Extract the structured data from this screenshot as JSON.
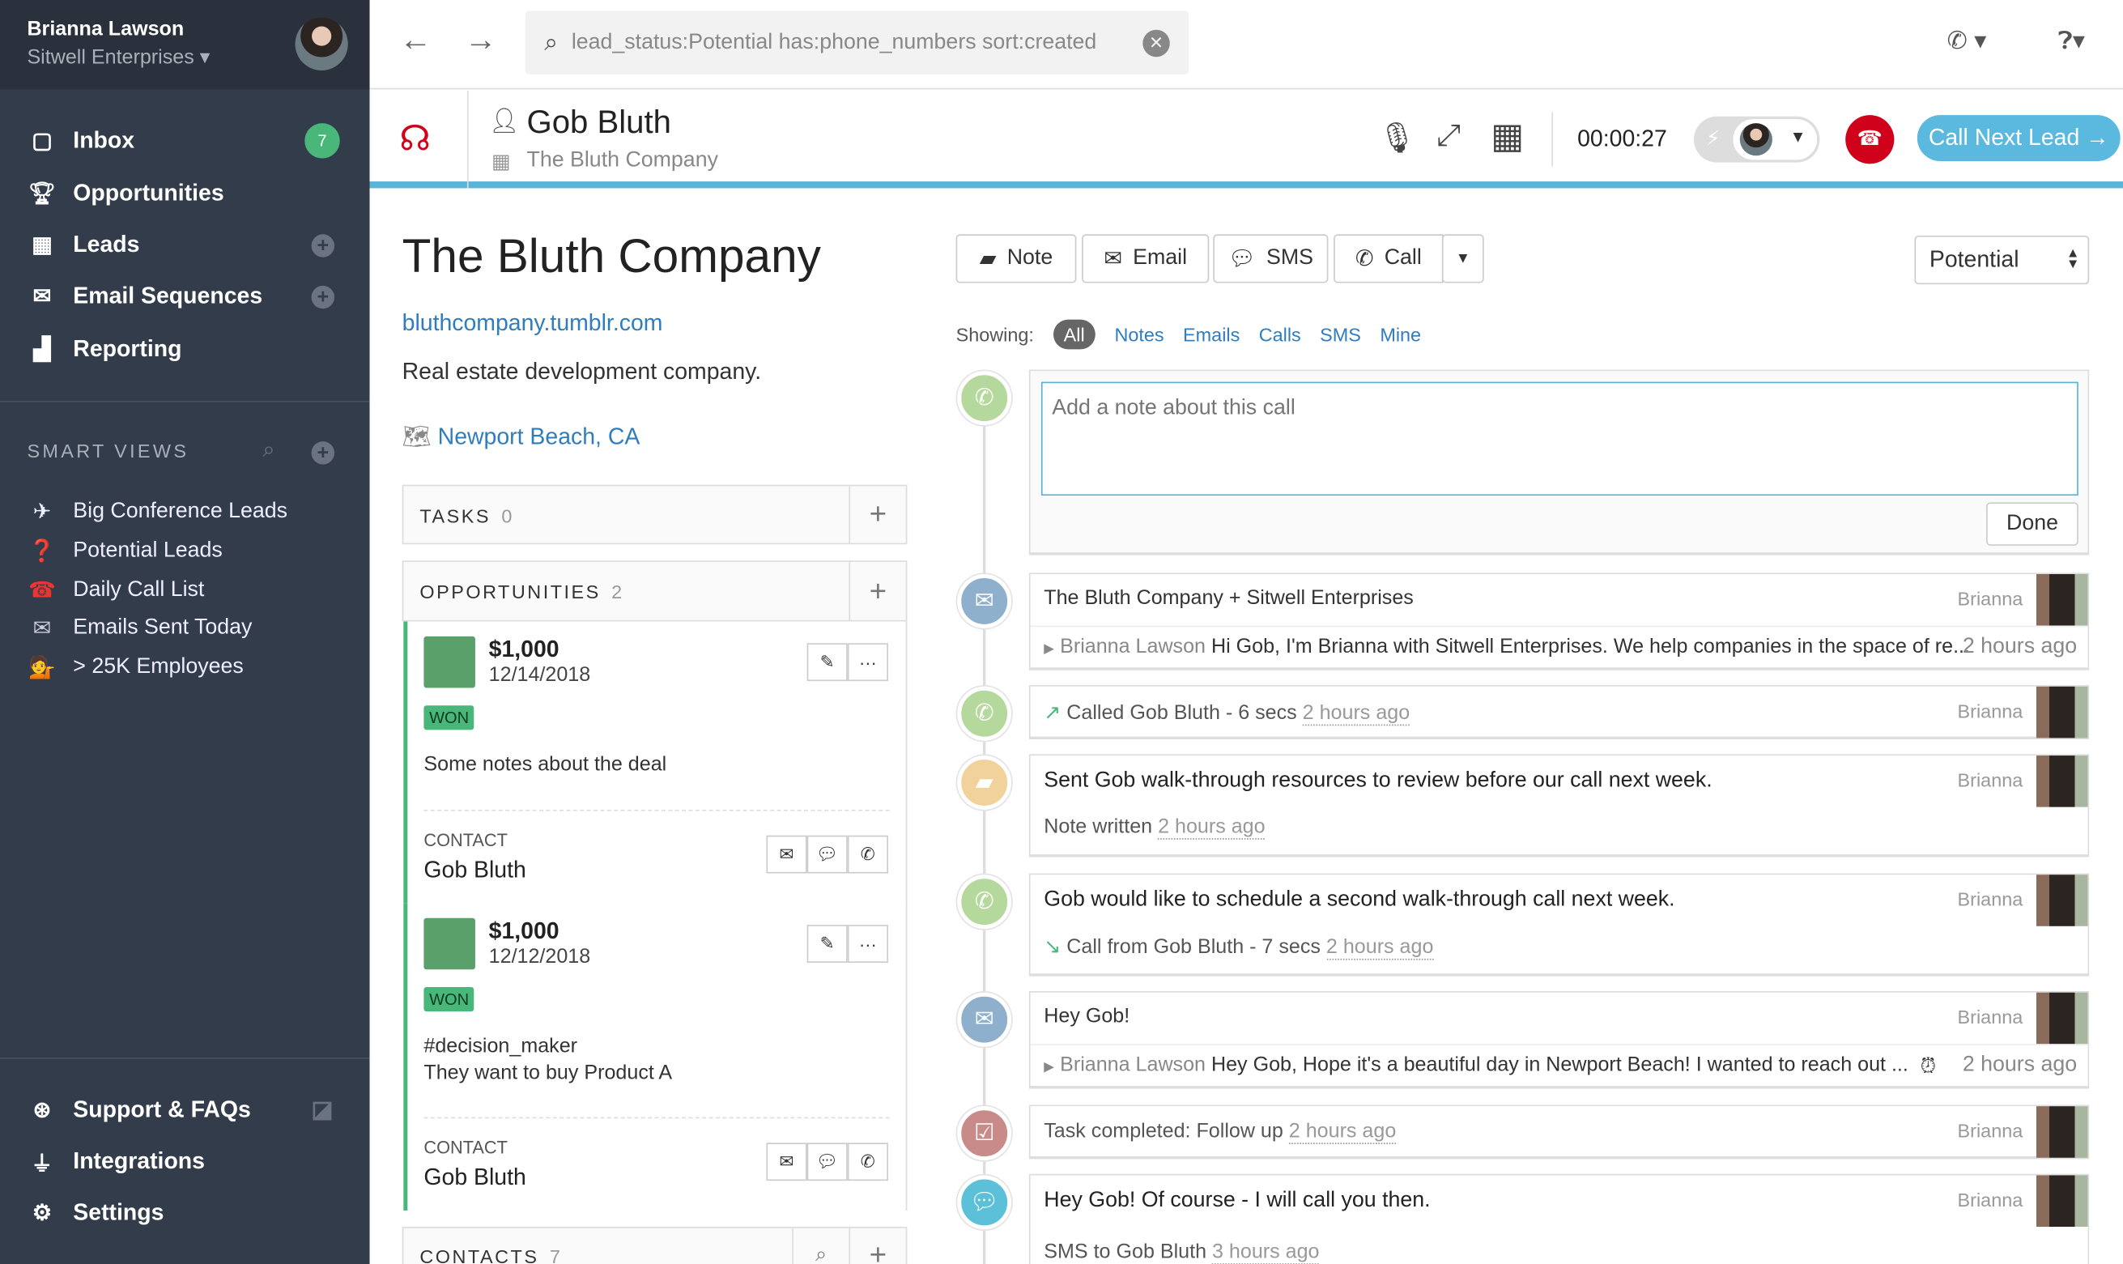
{
  "user": {
    "name": "Brianna Lawson",
    "org": "Sitwell Enterprises"
  },
  "nav": [
    {
      "label": "Inbox",
      "icon": "inbox-icon",
      "badge": "7"
    },
    {
      "label": "Opportunities",
      "icon": "trophy-icon"
    },
    {
      "label": "Leads",
      "icon": "building-icon"
    },
    {
      "label": "Email Sequences",
      "icon": "email-sequences-icon"
    },
    {
      "label": "Reporting",
      "icon": "chart-icon"
    }
  ],
  "smart_views": {
    "title": "SMART VIEWS",
    "items": [
      {
        "label": "Big Conference Leads",
        "icon": "✈"
      },
      {
        "label": "Potential Leads",
        "icon": "❓"
      },
      {
        "label": "Daily Call List",
        "icon": "☎"
      },
      {
        "label": "Emails Sent Today",
        "icon": "✉"
      },
      {
        "label": "> 25K Employees",
        "icon": "💁"
      }
    ]
  },
  "bottom_nav": [
    {
      "label": "Support & FAQs",
      "icon": "lifebuoy-icon"
    },
    {
      "label": "Integrations",
      "icon": "plug-icon"
    },
    {
      "label": "Settings",
      "icon": "gear-icon"
    }
  ],
  "search": {
    "value": "lead_status:Potential has:phone_numbers sort:created"
  },
  "call": {
    "contact": "Gob Bluth",
    "company": "The Bluth Company",
    "timer": "00:00:27",
    "next_label": "Call Next Lead →"
  },
  "lead": {
    "name": "The Bluth Company",
    "url": "bluthcompany.tumblr.com",
    "description": "Real estate development company.",
    "location": "Newport Beach, CA"
  },
  "tasks": {
    "title": "TASKS",
    "count": "0"
  },
  "opportunities": {
    "title": "OPPORTUNITIES",
    "count": "2",
    "items": [
      {
        "value": "$1,000",
        "date": "12/14/2018",
        "status": "WON",
        "notes": [
          "Some notes about the deal"
        ],
        "contact_label": "CONTACT",
        "contact": "Gob Bluth"
      },
      {
        "value": "$1,000",
        "date": "12/12/2018",
        "status": "WON",
        "notes": [
          "#decision_maker",
          "They want to buy Product A"
        ],
        "contact_label": "CONTACT",
        "contact": "Gob Bluth"
      }
    ]
  },
  "contacts": {
    "title": "CONTACTS",
    "count": "7"
  },
  "actions": {
    "note": "Note",
    "email": "Email",
    "sms": "SMS",
    "call": "Call",
    "status": "Potential"
  },
  "filters": {
    "label": "Showing:",
    "items": [
      "All",
      "Notes",
      "Emails",
      "Calls",
      "SMS",
      "Mine"
    ],
    "active": "All"
  },
  "note_input": {
    "placeholder": "Add a note about this call",
    "done": "Done"
  },
  "timeline": [
    {
      "type": "email",
      "title": "The Bluth Company + Sitwell Enterprises",
      "user": "Brianna",
      "sender": "Brianna Lawson",
      "body": "Hi Gob, I'm Brianna with Sitwell Enterprises. We help companies in the space of re...",
      "time": "2 hours ago"
    },
    {
      "type": "call",
      "text": "Called Gob Bluth - 6 secs",
      "time": "2 hours ago",
      "user": "Brianna"
    },
    {
      "type": "note",
      "title": "Sent Gob walk-through resources to review before our call next week.",
      "sub": "Note written",
      "time": "2 hours ago",
      "user": "Brianna"
    },
    {
      "type": "call",
      "title": "Gob would like to schedule a second walk-through call next week.",
      "sub": "Call from Gob Bluth - 7 secs",
      "time": "2 hours ago",
      "user": "Brianna"
    },
    {
      "type": "email",
      "title": "Hey Gob!",
      "user": "Brianna",
      "sender": "Brianna Lawson",
      "body": "Hey Gob, Hope it's a beautiful day in Newport Beach! I wanted to reach out ...",
      "time": "2 hours ago"
    },
    {
      "type": "task",
      "text": "Task completed: Follow up",
      "time": "2 hours ago",
      "user": "Brianna"
    },
    {
      "type": "sms",
      "title": "Hey Gob! Of course - I will call you then.",
      "sub": "SMS to Gob Bluth",
      "time": "3 hours ago",
      "user": "Brianna"
    }
  ],
  "colors": {
    "sidebar": "#333c4a",
    "accent": "#5bb4d8",
    "won": "#49b77a",
    "hangup": "#d0021b",
    "call_icon": "#b5d99c",
    "email_icon": "#8fb0cc",
    "note_icon": "#f0d29a",
    "task_icon": "#c98a8a",
    "sms_icon": "#5bc0d8"
  }
}
